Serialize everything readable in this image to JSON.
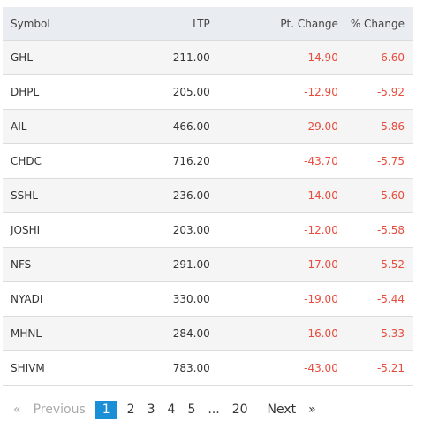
{
  "table": {
    "columns": [
      "Symbol",
      "LTP",
      "Pt. Change",
      "% Change"
    ],
    "rows": [
      [
        "GHL",
        "211.00",
        "-14.90",
        "-6.60"
      ],
      [
        "DHPL",
        "205.00",
        "-12.90",
        "-5.92"
      ],
      [
        "AIL",
        "466.00",
        "-29.00",
        "-5.86"
      ],
      [
        "CHDC",
        "716.20",
        "-43.70",
        "-5.75"
      ],
      [
        "SSHL",
        "236.00",
        "-14.00",
        "-5.60"
      ],
      [
        "JOSHI",
        "203.00",
        "-12.00",
        "-5.58"
      ],
      [
        "NFS",
        "291.00",
        "-17.00",
        "-5.52"
      ],
      [
        "NYADI",
        "330.00",
        "-19.00",
        "-5.44"
      ],
      [
        "MHNL",
        "284.00",
        "-16.00",
        "-5.33"
      ],
      [
        "SHIVM",
        "783.00",
        "-43.00",
        "-5.21"
      ]
    ]
  },
  "pagination": {
    "first": "«",
    "previous": "Previous",
    "pages": [
      "1",
      "2",
      "3",
      "4",
      "5",
      "...",
      "20"
    ],
    "active": 0,
    "next": "Next",
    "last": "»"
  }
}
